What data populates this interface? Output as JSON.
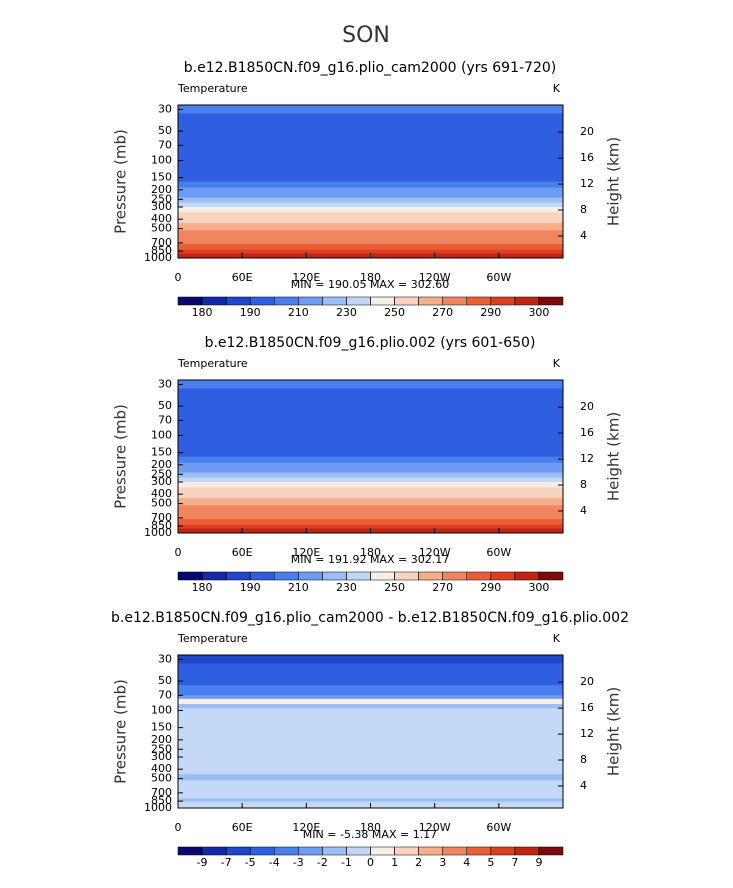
{
  "title": "SON",
  "chart_data": [
    {
      "type": "contour",
      "title": "b.e12.B1850CN.f09_g16.plio_cam2000 (yrs 691-720)",
      "field": "Temperature",
      "units": "K",
      "ylabel": "Pressure (mb)",
      "y2label": "Height (km)",
      "xlim": [
        0,
        360
      ],
      "xticks": [
        0,
        {
          "value": 60,
          "label": "60E"
        },
        {
          "value": 120,
          "label": "120E"
        },
        180,
        {
          "value": 240,
          "label": "120W"
        },
        {
          "value": 300,
          "label": "60W"
        }
      ],
      "ylim": [
        1000,
        27
      ],
      "log_y": true,
      "yticks": [
        30,
        50,
        70,
        100,
        150,
        200,
        250,
        300,
        400,
        500,
        700,
        850,
        1000
      ],
      "y2lim": [
        0.6,
        24.2
      ],
      "y2ticks": [
        4,
        8,
        12,
        16,
        20
      ],
      "stats": "MIN = 190.05  MAX = 302.60",
      "profile_p": [
        27,
        33,
        62,
        140,
        165,
        190,
        215,
        240,
        270,
        300,
        340,
        390,
        440,
        520,
        620,
        720,
        820,
        900
      ],
      "profile_t": [
        205,
        198,
        192,
        198,
        205,
        212,
        218,
        225,
        233,
        243,
        250,
        258,
        265,
        272,
        278,
        285,
        292,
        296
      ],
      "levels": [
        180,
        185,
        190,
        200,
        210,
        220,
        230,
        240,
        250,
        260,
        270,
        280,
        290,
        295,
        300
      ],
      "label_stride": 2,
      "colors": [
        "#08086e",
        "#1428a8",
        "#1f46cc",
        "#2f5fe0",
        "#4a7fee",
        "#6e9cf2",
        "#9bbdf5",
        "#c3d8f7",
        "#f7eee8",
        "#f8d3bd",
        "#f5ad8c",
        "#f08660",
        "#ea5f36",
        "#dd4020",
        "#c02514",
        "#7c0b0b"
      ]
    },
    {
      "type": "contour",
      "title": "b.e12.B1850CN.f09_g16.plio.002 (yrs 601-650)",
      "field": "Temperature",
      "units": "K",
      "ylabel": "Pressure (mb)",
      "y2label": "Height (km)",
      "xlim": [
        0,
        360
      ],
      "xticks": [
        0,
        {
          "value": 60,
          "label": "60E"
        },
        {
          "value": 120,
          "label": "120E"
        },
        180,
        {
          "value": 240,
          "label": "120W"
        },
        {
          "value": 300,
          "label": "60W"
        }
      ],
      "ylim": [
        1000,
        27
      ],
      "log_y": true,
      "yticks": [
        30,
        50,
        70,
        100,
        150,
        200,
        250,
        300,
        400,
        500,
        700,
        850,
        1000
      ],
      "y2lim": [
        0.6,
        24.2
      ],
      "y2ticks": [
        4,
        8,
        12,
        16,
        20
      ],
      "stats": "MIN = 191.92  MAX = 302.17",
      "profile_p": [
        27,
        33,
        62,
        140,
        165,
        190,
        215,
        240,
        270,
        300,
        340,
        390,
        440,
        520,
        620,
        720,
        820,
        900
      ],
      "profile_t": [
        205,
        198,
        192,
        198,
        205,
        212,
        218,
        225,
        233,
        243,
        250,
        258,
        265,
        272,
        278,
        285,
        292,
        296
      ],
      "levels": [
        180,
        185,
        190,
        200,
        210,
        220,
        230,
        240,
        250,
        260,
        270,
        280,
        290,
        295,
        300
      ],
      "label_stride": 2,
      "colors": [
        "#08086e",
        "#1428a8",
        "#1f46cc",
        "#2f5fe0",
        "#4a7fee",
        "#6e9cf2",
        "#9bbdf5",
        "#c3d8f7",
        "#f7eee8",
        "#f8d3bd",
        "#f5ad8c",
        "#f08660",
        "#ea5f36",
        "#dd4020",
        "#c02514",
        "#7c0b0b"
      ]
    },
    {
      "type": "contour",
      "title": "b.e12.B1850CN.f09_g16.plio_cam2000 - b.e12.B1850CN.f09_g16.plio.002",
      "field": "Temperature",
      "units": "K",
      "ylabel": "Pressure (mb)",
      "y2label": "Height (km)",
      "xlim": [
        0,
        360
      ],
      "xticks": [
        0,
        {
          "value": 60,
          "label": "60E"
        },
        {
          "value": 120,
          "label": "120E"
        },
        180,
        {
          "value": 240,
          "label": "120W"
        },
        {
          "value": 300,
          "label": "60W"
        }
      ],
      "ylim": [
        1000,
        27
      ],
      "log_y": true,
      "yticks": [
        30,
        50,
        70,
        100,
        150,
        200,
        250,
        300,
        400,
        500,
        700,
        850,
        1000
      ],
      "y2lim": [
        0.6,
        24.2
      ],
      "y2ticks": [
        4,
        8,
        12,
        16,
        20
      ],
      "stats": "MIN =  -5.38  MAX =   1.17",
      "profile_p": [
        27,
        33,
        55,
        70,
        76,
        86,
        95,
        450,
        520,
        800,
        860
      ],
      "profile_t": [
        -5.5,
        -4.5,
        -3.5,
        -2.5,
        0.5,
        -1.5,
        -0.5,
        -1.5,
        -0.5,
        -1.5,
        -0.5
      ],
      "levels": [
        -9,
        -7,
        -5,
        -4,
        -3,
        -2,
        -1,
        0,
        1,
        2,
        3,
        4,
        5,
        7,
        9
      ],
      "label_stride": 1,
      "colors": [
        "#08086e",
        "#1428a8",
        "#1f46cc",
        "#2f5fe0",
        "#4a7fee",
        "#6e9cf2",
        "#9bbdf5",
        "#c3d8f7",
        "#f7eee8",
        "#f8d3bd",
        "#f5ad8c",
        "#f08660",
        "#ea5f36",
        "#dd4020",
        "#c02514",
        "#7c0b0b"
      ]
    }
  ]
}
